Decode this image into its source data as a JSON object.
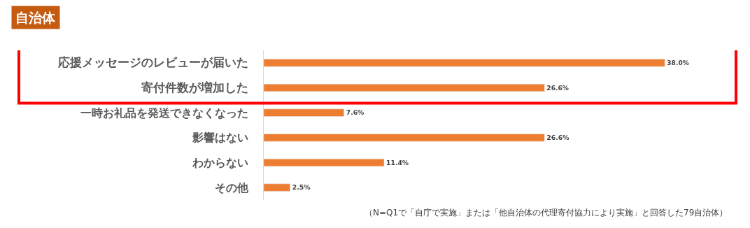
{
  "chart_data": {
    "type": "bar",
    "orientation": "horizontal",
    "title": "自治体",
    "categories": [
      "応援メッセージのレビューが届いた",
      "寄付件数が増加した",
      "一時お礼品を発送できなくなった",
      "影響はない",
      "わからない",
      "その他"
    ],
    "values": [
      38.0,
      26.6,
      7.6,
      26.6,
      11.4,
      2.5
    ],
    "value_labels": [
      "38.0%",
      "26.6%",
      "7.6%",
      "26.6%",
      "11.4%",
      "2.5%"
    ],
    "color": "#ed7d31",
    "annotations": [
      "（N=Q1で「自庁で実施」または「他自治体の代理寄付協力により実施」と回答した79自治体）"
    ],
    "legend": false
  }
}
